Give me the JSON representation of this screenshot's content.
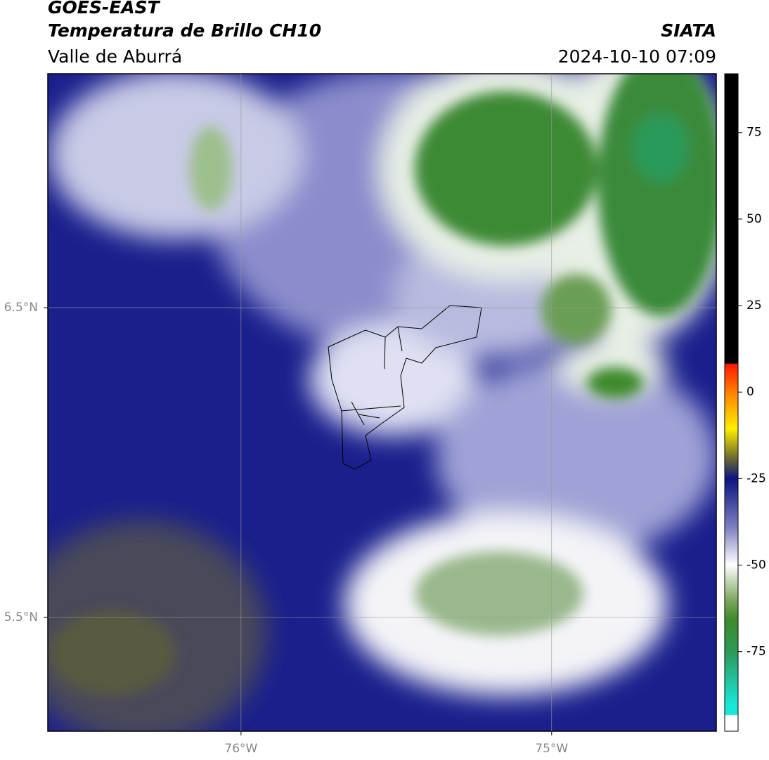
{
  "header": {
    "title": "GOES-EAST",
    "subtitle": "Temperatura de Brillo CH10",
    "region": "Valle de Aburrá",
    "source": "SIATA",
    "datetime": "2024-10-10 07:09"
  },
  "map": {
    "xlim": [
      -76.622,
      -74.47
    ],
    "ylim": [
      5.133,
      7.255
    ],
    "xticks": [
      {
        "value": -76,
        "label": "76°W"
      },
      {
        "value": -75,
        "label": "75°W"
      }
    ],
    "yticks": [
      {
        "value": 6.5,
        "label": "6.5°N"
      },
      {
        "value": 5.5,
        "label": "5.5°N"
      }
    ],
    "grid": true
  },
  "colorbar": {
    "lim": [
      -98,
      92
    ],
    "ticks": [
      75,
      50,
      25,
      0,
      -25,
      -50,
      -75
    ]
  }
}
